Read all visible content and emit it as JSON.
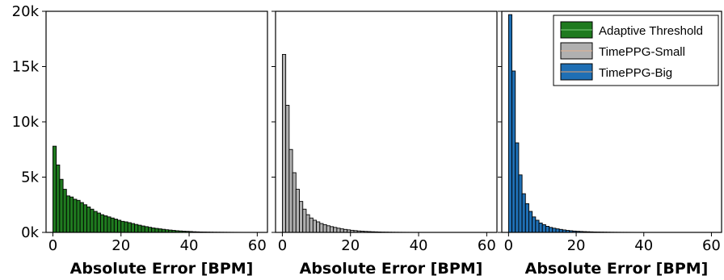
{
  "chart_data": [
    {
      "type": "bar",
      "subtype": "histogram",
      "xlabel": "Absolute Error [BPM]",
      "ylabel": "",
      "xlim": [
        -2,
        63
      ],
      "ylim": [
        0,
        20000
      ],
      "x_ticks": [
        0,
        20,
        40,
        60
      ],
      "x_tick_labels": [
        "0",
        "20",
        "40",
        "60"
      ],
      "y_ticks": [
        0,
        5000,
        10000,
        15000,
        20000
      ],
      "y_tick_labels": [
        "0k",
        "5k",
        "10k",
        "15k",
        "20k"
      ],
      "bin_width": 1,
      "series": [
        {
          "name": "Adaptive Threshold",
          "color": "#1f7a1f",
          "bin_starts": [
            0,
            1,
            2,
            3,
            4,
            5,
            6,
            7,
            8,
            9,
            10,
            11,
            12,
            13,
            14,
            15,
            16,
            17,
            18,
            19,
            20,
            21,
            22,
            23,
            24,
            25,
            26,
            27,
            28,
            29,
            30,
            31,
            32,
            33,
            34,
            35,
            36,
            37,
            38,
            39,
            40,
            41,
            42,
            43,
            44,
            45,
            46,
            47,
            48,
            49,
            50,
            51,
            52,
            53,
            54,
            55,
            56,
            57,
            58
          ],
          "values": [
            7800,
            6100,
            4800,
            3900,
            3300,
            3200,
            3000,
            2900,
            2700,
            2500,
            2300,
            2100,
            1900,
            1750,
            1600,
            1500,
            1400,
            1300,
            1200,
            1100,
            1000,
            950,
            880,
            800,
            720,
            650,
            580,
            520,
            460,
            400,
            360,
            320,
            280,
            240,
            210,
            180,
            150,
            130,
            110,
            95,
            80,
            60,
            50,
            40,
            35,
            30,
            25,
            20,
            18,
            15,
            12,
            10,
            8,
            6,
            5,
            4,
            3,
            2,
            2
          ]
        }
      ],
      "legend": {
        "position": "top-right",
        "entries": [
          "Adaptive Threshold",
          "TimePPG-Small",
          "TimePPG-Big"
        ]
      }
    },
    {
      "type": "bar",
      "subtype": "histogram",
      "xlabel": "Absolute Error [BPM]",
      "ylabel": "",
      "xlim": [
        -2,
        63
      ],
      "ylim": [
        0,
        20000
      ],
      "x_ticks": [
        0,
        20,
        40,
        60
      ],
      "x_tick_labels": [
        "0",
        "20",
        "40",
        "60"
      ],
      "bin_width": 1,
      "series": [
        {
          "name": "TimePPG-Small",
          "color": "#b0b0b0",
          "bin_starts": [
            0,
            1,
            2,
            3,
            4,
            5,
            6,
            7,
            8,
            9,
            10,
            11,
            12,
            13,
            14,
            15,
            16,
            17,
            18,
            19,
            20,
            21,
            22,
            23,
            24,
            25,
            26,
            27,
            28,
            29,
            30,
            31,
            32,
            33,
            34,
            35,
            36,
            37,
            38,
            39
          ],
          "values": [
            16100,
            11500,
            7500,
            5400,
            3900,
            2800,
            2100,
            1600,
            1300,
            1100,
            950,
            800,
            700,
            600,
            520,
            450,
            380,
            320,
            270,
            230,
            190,
            160,
            130,
            110,
            90,
            75,
            60,
            50,
            40,
            30,
            25,
            20,
            15,
            12,
            10,
            8,
            6,
            5,
            3,
            2
          ]
        }
      ]
    },
    {
      "type": "bar",
      "subtype": "histogram",
      "xlabel": "Absolute Error [BPM]",
      "ylabel": "",
      "xlim": [
        -2,
        63
      ],
      "ylim": [
        0,
        20000
      ],
      "x_ticks": [
        0,
        20,
        40,
        60
      ],
      "x_tick_labels": [
        "0",
        "20",
        "40",
        "60"
      ],
      "bin_width": 1,
      "series": [
        {
          "name": "TimePPG-Big",
          "color": "#1f6fb4",
          "bin_starts": [
            0,
            1,
            2,
            3,
            4,
            5,
            6,
            7,
            8,
            9,
            10,
            11,
            12,
            13,
            14,
            15,
            16,
            17,
            18,
            19,
            20,
            21,
            22,
            23,
            24,
            25,
            26,
            27,
            28,
            29,
            30,
            31,
            32,
            33,
            34,
            35,
            36,
            37,
            38,
            39,
            40,
            41,
            42,
            43,
            44,
            45,
            46,
            47
          ],
          "values": [
            19700,
            14600,
            8100,
            5200,
            3500,
            2600,
            1900,
            1400,
            1100,
            850,
            700,
            550,
            450,
            380,
            320,
            270,
            220,
            180,
            150,
            120,
            100,
            85,
            70,
            60,
            50,
            40,
            35,
            30,
            25,
            20,
            15,
            12,
            10,
            8,
            7,
            6,
            5,
            4,
            3,
            3,
            2,
            2,
            1,
            1,
            1,
            1,
            1,
            1
          ]
        }
      ]
    }
  ]
}
